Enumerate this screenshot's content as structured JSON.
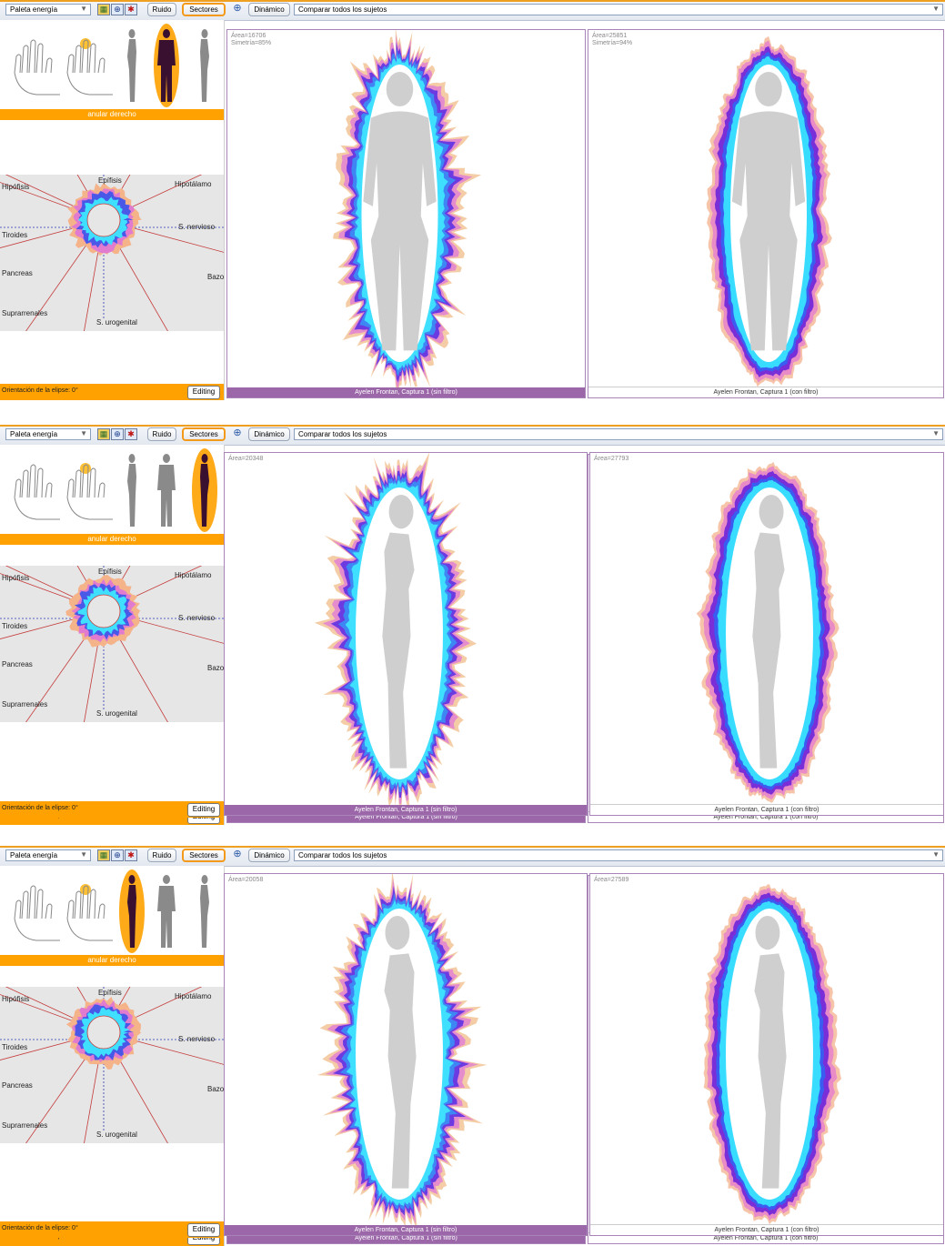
{
  "toolbar": {
    "palette_label": "Paleta energía",
    "ruido_label": "Ruido",
    "sectores_label": "Sectores",
    "dinamico_label": "Dinámico",
    "compare_label": "Comparar todos los sujetos"
  },
  "panels": [
    {
      "finger_label": "anular derecho",
      "orientation_label": "Orientación de la elipse: 0°",
      "editing_label": "Editing",
      "sectors": {
        "epifisis": "Epífisis",
        "hipofisis": "Hipófisis",
        "hipotalamo": "Hipotálamo",
        "tiroides": "Tiroides",
        "snervioso": "S. nervioso",
        "pancreas": "Pancreas",
        "bazo": "Bazo",
        "suprarrenales": "Suprarrenales",
        "surogenital": "S. urogenital"
      },
      "left_view": {
        "area": "Área=16706",
        "symmetry": "Simetría=85%",
        "caption": "Ayelen Frontan, Captura 1 (sin filtro)"
      },
      "right_view": {
        "area": "Área=25851",
        "symmetry": "Simetría=94%",
        "caption": "Ayelen Frontan, Captura 1 (con filtro)"
      },
      "selected_view": "front"
    },
    {
      "finger_label": "anular derecho",
      "orientation_label": "Orientación de la elipse: 0°",
      "editing_label": "Editing",
      "sectors": {
        "epifisis": "Epífisis",
        "hipofisis": "Hipófisis",
        "hipotalamo": "Hipotálamo",
        "tiroides": "Tiroides",
        "snervioso": "S. nervioso",
        "pancreas": "Pancreas",
        "bazo": "Bazo",
        "suprarrenales": "Suprarrenales",
        "surogenital": "S. urogenital"
      },
      "left_view": {
        "area": "Área=20348",
        "symmetry": "",
        "caption": "Ayelen Frontan, Captura 1 (sin filtro)"
      },
      "right_view": {
        "area": "Área=27793",
        "symmetry": "",
        "caption": "Ayelen Frontan, Captura 1 (con filtro)"
      },
      "selected_view": "side-right"
    },
    {
      "finger_label": "anular derecho",
      "orientation_label": "Orientación de la elipse: 0°",
      "editing_label": "Editing",
      "sectors": {
        "epifisis": "Epífisis",
        "hipofisis": "Hipófisis",
        "hipotalamo": "Hipotálamo",
        "tiroides": "Tiroides",
        "snervioso": "S. nervioso",
        "pancreas": "Pancreas",
        "bazo": "Bazo",
        "suprarrenales": "Suprarrenales",
        "surogenital": "S. urogenital"
      },
      "left_view": {
        "area": "Área=20058",
        "symmetry": "",
        "caption": "Ayelen Frontan, Captura 1 (sin filtro)"
      },
      "right_view": {
        "area": "Área=27589",
        "symmetry": "",
        "caption": "Ayelen Frontan, Captura 1 (con filtro)"
      },
      "selected_view": "side-left"
    }
  ],
  "colors": {
    "accent_orange": "#ffa100",
    "caption_purple": "#9b67a9",
    "aura_outer": "#e8a0c0",
    "aura_mid": "#5a3fd0",
    "aura_inner": "#35d6ff"
  }
}
